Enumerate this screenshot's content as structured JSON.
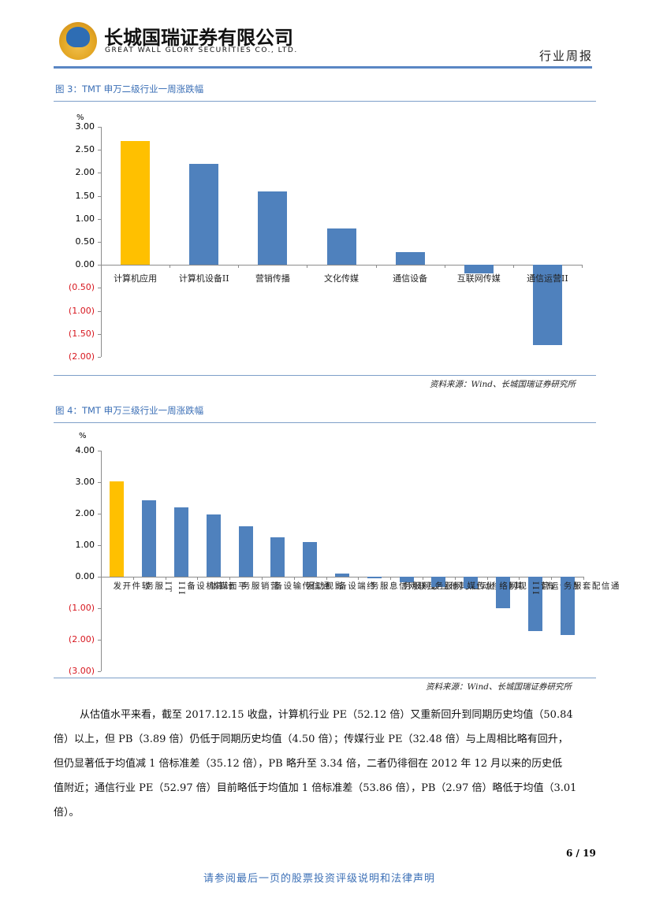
{
  "header": {
    "company_cn": "长城国瑞证券有限公司",
    "company_en": "GREAT WALL GLORY SECURITIES CO., LTD.",
    "report_type": "行业周报"
  },
  "colors": {
    "highlight_bar": "#FFC000",
    "default_bar": "#4F81BD",
    "negative_tick": "#D7161E",
    "caption": "#3B6FB6"
  },
  "figure3": {
    "caption": "图 3：TMT 申万二级行业一周涨跌幅",
    "unit": "%",
    "yticks": [
      "3.00",
      "2.50",
      "2.00",
      "1.50",
      "1.00",
      "0.50",
      "0.00",
      "(0.50)",
      "(1.00)",
      "(1.50)",
      "(2.00)"
    ],
    "source": "资料来源：Wind、长城国瑞证券研究所"
  },
  "figure4": {
    "caption": "图 4：TMT 申万三级行业一周涨跌幅",
    "unit": "%",
    "yticks": [
      "4.00",
      "3.00",
      "2.00",
      "1.00",
      "0.00",
      "(1.00)",
      "(2.00)",
      "(3.00)"
    ],
    "source": "资料来源：Wind、长城国瑞证券研究所"
  },
  "chart_data": [
    {
      "type": "bar",
      "title": "图 3：TMT 申万二级行业一周涨跌幅",
      "xlabel": "",
      "ylabel": "%",
      "ylim": [
        -2.0,
        3.0
      ],
      "grid": false,
      "legend": null,
      "categories": [
        "计算机应用",
        "计算机设备II",
        "营销传播",
        "文化传媒",
        "通信设备",
        "互联网传媒",
        "通信运营II"
      ],
      "values": [
        2.69,
        2.19,
        1.59,
        0.79,
        0.27,
        -0.19,
        -1.75
      ],
      "highlight_index": 0
    },
    {
      "type": "bar",
      "title": "图 4：TMT 申万三级行业一周涨跌幅",
      "xlabel": "",
      "ylabel": "%",
      "ylim": [
        -3.0,
        4.0
      ],
      "grid": false,
      "legend": null,
      "categories": [
        "软件开发",
        "IT服务",
        "计算机设备III",
        "平面媒体",
        "营销服务",
        "通信传输设备",
        "影视动漫",
        "终端设备",
        "互联网信息服务",
        "其他互联网服务",
        "移动互联网服务",
        "其他文化传媒",
        "有线电视网络",
        "通信运营III",
        "通信配套服务"
      ],
      "values": [
        3.03,
        2.43,
        2.2,
        1.98,
        1.6,
        1.25,
        1.1,
        0.1,
        -0.05,
        -0.17,
        -0.33,
        -0.38,
        -1.01,
        -1.73,
        -1.85
      ],
      "highlight_index": 0
    }
  ],
  "body": {
    "lines": [
      "从估值水平来看，截至 2017.12.15 收盘，计算机行业 PE（52.12 倍）又重新回升到同期历史均值（50.84",
      "倍）以上，但 PB（3.89 倍）仍低于同期历史均值（4.50 倍）；传媒行业 PE（32.48 倍）与上周相比略有回升，",
      "但仍显著低于均值减 1 倍标准差（35.12 倍），PB 略升至 3.34 倍，二者仍徘徊在 2012 年 12 月以来的历史低",
      "值附近；通信行业 PE（52.97 倍）目前略低于均值加 1 倍标准差（53.86 倍），PB（2.97 倍）略低于均值（3.01",
      "倍）。"
    ]
  },
  "footer": {
    "page": "6 / 19",
    "disclaimer": "请参阅最后一页的股票投资评级说明和法律声明"
  }
}
